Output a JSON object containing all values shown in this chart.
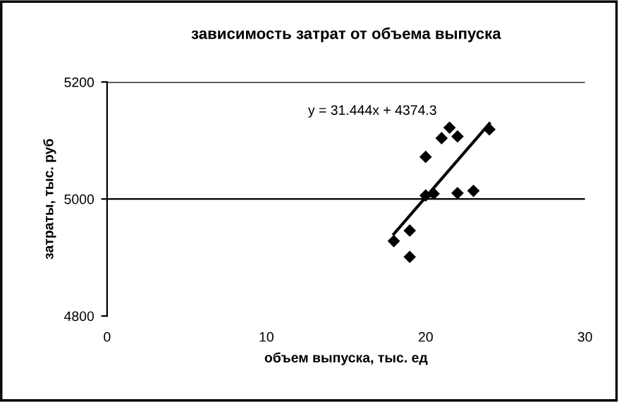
{
  "chart_data": {
    "type": "scatter",
    "title": "зависимость затрат от объема выпуска",
    "xlabel": "объем выпуска, тыс. ед",
    "ylabel": "затраты, тыс. руб",
    "series": [
      {
        "type": "scatter",
        "color": "#000000",
        "marker": "diamond",
        "x": [
          18.0,
          19.0,
          19.0,
          20.0,
          20.0,
          20.5,
          21.0,
          21.5,
          22.0,
          22.0,
          23.0,
          24.0
        ],
        "values": [
          4928,
          4946,
          4901,
          5072,
          5006,
          5009,
          5104,
          5122,
          5107,
          5010,
          5014,
          5119
        ]
      },
      {
        "type": "line",
        "color": "#000000",
        "marker": "none",
        "x": [
          18,
          24
        ],
        "values": [
          4940,
          5129
        ]
      }
    ],
    "annotations": [
      "y = 31.444x + 4374.3"
    ],
    "xlim": [
      0,
      30
    ],
    "xticks": [
      0,
      10,
      20,
      30
    ],
    "ylim": [
      4800,
      5200
    ],
    "yticks": [
      4800,
      5000,
      5200
    ],
    "grid": "y",
    "legend": false
  }
}
